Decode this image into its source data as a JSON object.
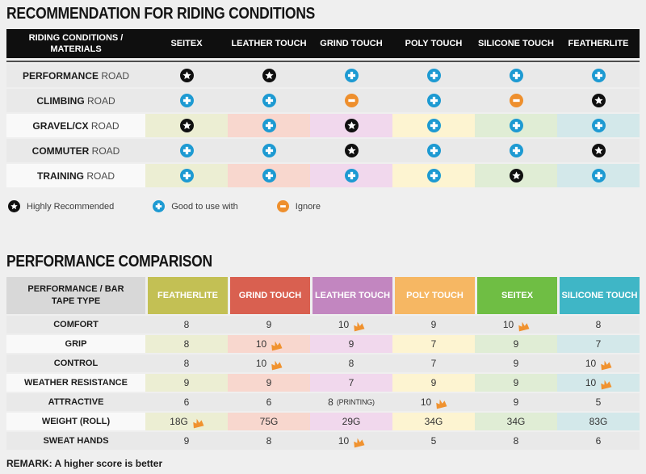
{
  "colors": {
    "page_bg": "#efefef",
    "header_bg": "#0f0f0f",
    "row_gray": "#e9e9e9",
    "label_light": "#f9f9f9",
    "star_bg": "#101010",
    "plus_bg": "#1d9ad2",
    "minus_bg": "#ee8f2d",
    "crown": "#f0922f"
  },
  "section1": {
    "title": "RECOMMENDATION FOR RIDING CONDITIONS",
    "table": {
      "corner_header": "RIDING CONDITIONS / MATERIALS",
      "columns": [
        "SEITEX",
        "LEATHER TOUCH",
        "GRIND TOUCH",
        "POLY TOUCH",
        "SILICONE TOUCH",
        "FEATHERLITE"
      ],
      "tint_colors": [
        "#eceed3",
        "#f8d7ce",
        "#f1d8ed",
        "#fdf4d1",
        "#e0edd5",
        "#d3e8ea"
      ],
      "rows": [
        {
          "label_bold": "PERFORMANCE",
          "label_rest": "ROAD",
          "tinted": false,
          "cells": [
            "star",
            "star",
            "plus",
            "plus",
            "plus",
            "plus"
          ]
        },
        {
          "label_bold": "CLIMBING",
          "label_rest": "ROAD",
          "tinted": false,
          "cells": [
            "plus",
            "plus",
            "minus",
            "plus",
            "minus",
            "star"
          ]
        },
        {
          "label_bold": "GRAVEL/CX",
          "label_rest": "ROAD",
          "tinted": true,
          "cells": [
            "star",
            "plus",
            "star",
            "plus",
            "plus",
            "plus"
          ]
        },
        {
          "label_bold": "COMMUTER",
          "label_rest": "ROAD",
          "tinted": false,
          "cells": [
            "plus",
            "plus",
            "star",
            "plus",
            "plus",
            "star"
          ]
        },
        {
          "label_bold": "TRAINING",
          "label_rest": "ROAD",
          "tinted": true,
          "cells": [
            "plus",
            "plus",
            "plus",
            "plus",
            "star",
            "plus"
          ]
        }
      ]
    },
    "legend": [
      {
        "icon": "star",
        "label": "Highly Recommended"
      },
      {
        "icon": "plus",
        "label": "Good to use with"
      },
      {
        "icon": "minus",
        "label": "Ignore"
      }
    ]
  },
  "section2": {
    "title": "PERFORMANCE COMPARISON",
    "table": {
      "corner_header": "PERFORMANCE / BAR TAPE TYPE",
      "columns": [
        {
          "label": "FEATHERLITE",
          "color": "#c3c054",
          "tint": "#eceed3"
        },
        {
          "label": "GRIND TOUCH",
          "color": "#d96050",
          "tint": "#f8d7ce"
        },
        {
          "label": "LEATHER TOUCH",
          "color": "#c286c0",
          "tint": "#f1d8ed"
        },
        {
          "label": "POLY TOUCH",
          "color": "#f6b763",
          "tint": "#fdf4d1"
        },
        {
          "label": "SEITEX",
          "color": "#6fbe44",
          "tint": "#e0edd5"
        },
        {
          "label": "SILICONE TOUCH",
          "color": "#3fb6c6",
          "tint": "#d3e8ea"
        }
      ],
      "rows": [
        {
          "label": "COMFORT",
          "tinted": false,
          "cells": [
            {
              "value": "8"
            },
            {
              "value": "9"
            },
            {
              "value": "10",
              "crown": true
            },
            {
              "value": "9"
            },
            {
              "value": "10",
              "crown": true
            },
            {
              "value": "8"
            }
          ]
        },
        {
          "label": "GRIP",
          "tinted": true,
          "cells": [
            {
              "value": "8"
            },
            {
              "value": "10",
              "crown": true
            },
            {
              "value": "9"
            },
            {
              "value": "7"
            },
            {
              "value": "9"
            },
            {
              "value": "7"
            }
          ]
        },
        {
          "label": "CONTROL",
          "tinted": false,
          "cells": [
            {
              "value": "8"
            },
            {
              "value": "10",
              "crown": true
            },
            {
              "value": "8"
            },
            {
              "value": "7"
            },
            {
              "value": "9"
            },
            {
              "value": "10",
              "crown": true
            }
          ]
        },
        {
          "label": "WEATHER RESISTANCE",
          "tinted": true,
          "cells": [
            {
              "value": "9"
            },
            {
              "value": "9"
            },
            {
              "value": "7"
            },
            {
              "value": "9"
            },
            {
              "value": "9"
            },
            {
              "value": "10",
              "crown": true
            }
          ]
        },
        {
          "label": "ATTRACTIVE",
          "tinted": false,
          "cells": [
            {
              "value": "6"
            },
            {
              "value": "6"
            },
            {
              "value": "8",
              "suffix": "(PRINTING)"
            },
            {
              "value": "10",
              "crown": true
            },
            {
              "value": "9"
            },
            {
              "value": "5"
            }
          ]
        },
        {
          "label": "WEIGHT (ROLL)",
          "tinted": true,
          "cells": [
            {
              "value": "18G",
              "crown": true
            },
            {
              "value": "75G"
            },
            {
              "value": "29G"
            },
            {
              "value": "34G"
            },
            {
              "value": "34G"
            },
            {
              "value": "83G"
            }
          ]
        },
        {
          "label": "SWEAT HANDS",
          "tinted": false,
          "cells": [
            {
              "value": "9"
            },
            {
              "value": "8"
            },
            {
              "value": "10",
              "crown": true
            },
            {
              "value": "5"
            },
            {
              "value": "8"
            },
            {
              "value": "6"
            }
          ]
        }
      ]
    },
    "remark": "REMARK: A higher score is better"
  },
  "chart_data": [
    {
      "type": "table",
      "title": "RECOMMENDATION FOR RIDING CONDITIONS",
      "row_header": "RIDING CONDITIONS / MATERIALS",
      "columns": [
        "SEITEX",
        "LEATHER TOUCH",
        "GRIND TOUCH",
        "POLY TOUCH",
        "SILICONE TOUCH",
        "FEATHERLITE"
      ],
      "rows": [
        "PERFORMANCE ROAD",
        "CLIMBING ROAD",
        "GRAVEL/CX ROAD",
        "COMMUTER ROAD",
        "TRAINING ROAD"
      ],
      "values": [
        [
          "Highly Recommended",
          "Highly Recommended",
          "Good to use with",
          "Good to use with",
          "Good to use with",
          "Good to use with"
        ],
        [
          "Good to use with",
          "Good to use with",
          "Ignore",
          "Good to use with",
          "Ignore",
          "Highly Recommended"
        ],
        [
          "Highly Recommended",
          "Good to use with",
          "Highly Recommended",
          "Good to use with",
          "Good to use with",
          "Good to use with"
        ],
        [
          "Good to use with",
          "Good to use with",
          "Highly Recommended",
          "Good to use with",
          "Good to use with",
          "Highly Recommended"
        ],
        [
          "Good to use with",
          "Good to use with",
          "Good to use with",
          "Good to use with",
          "Highly Recommended",
          "Good to use with"
        ]
      ],
      "legend": [
        "Highly Recommended",
        "Good to use with",
        "Ignore"
      ]
    },
    {
      "type": "table",
      "title": "PERFORMANCE COMPARISON",
      "row_header": "PERFORMANCE / BAR TAPE TYPE",
      "columns": [
        "FEATHERLITE",
        "GRIND TOUCH",
        "LEATHER TOUCH",
        "POLY TOUCH",
        "SEITEX",
        "SILICONE TOUCH"
      ],
      "rows": [
        "COMFORT",
        "GRIP",
        "CONTROL",
        "WEATHER RESISTANCE",
        "ATTRACTIVE",
        "WEIGHT (ROLL)",
        "SWEAT HANDS"
      ],
      "values": [
        [
          "8",
          "9",
          "10 (best)",
          "9",
          "10 (best)",
          "8"
        ],
        [
          "8",
          "10 (best)",
          "9",
          "7",
          "9",
          "7"
        ],
        [
          "8",
          "10 (best)",
          "8",
          "7",
          "9",
          "10 (best)"
        ],
        [
          "9",
          "9",
          "7",
          "9",
          "9",
          "10 (best)"
        ],
        [
          "6",
          "6",
          "8 (PRINTING)",
          "10 (best)",
          "9",
          "5"
        ],
        [
          "18G (best)",
          "75G",
          "29G",
          "34G",
          "34G",
          "83G"
        ],
        [
          "9",
          "8",
          "10 (best)",
          "5",
          "8",
          "6"
        ]
      ],
      "note": "REMARK: A higher score is better"
    }
  ]
}
